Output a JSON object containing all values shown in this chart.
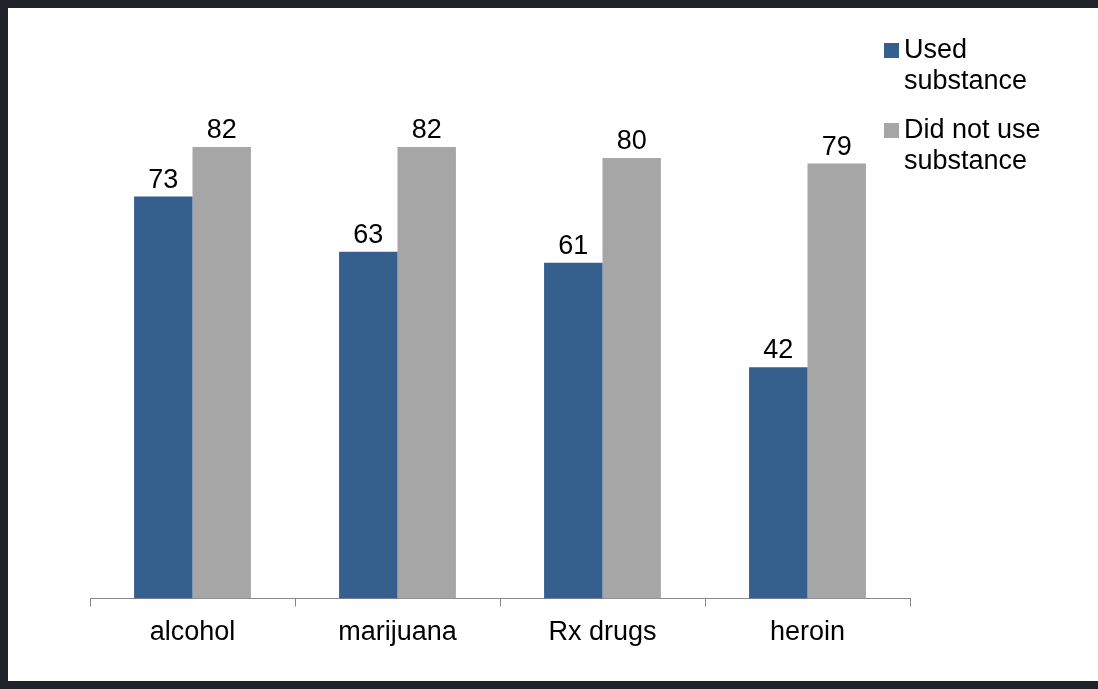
{
  "chart_data": {
    "type": "bar",
    "categories": [
      "alcohol",
      "marijuana",
      "Rx drugs",
      "heroin"
    ],
    "series": [
      {
        "name": "Used substance",
        "color": "#355f8d",
        "values": [
          73,
          63,
          61,
          42
        ]
      },
      {
        "name": "Did not use substance",
        "color": "#a6a6a6",
        "values": [
          82,
          82,
          80,
          79
        ]
      }
    ],
    "data_labels": true,
    "legend": "top right"
  }
}
